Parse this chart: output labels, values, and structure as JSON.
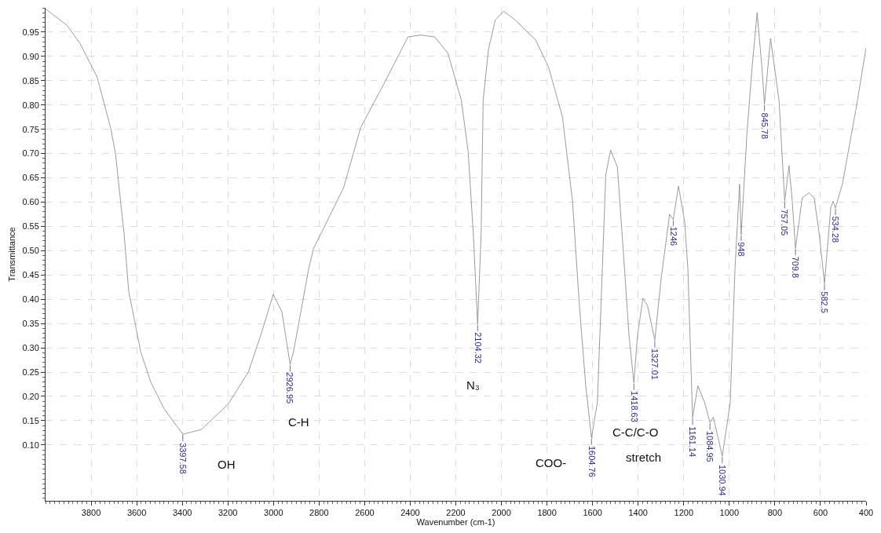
{
  "chart_data": {
    "type": "line",
    "xlabel": "Wavenumber (cm-1)",
    "ylabel": "Transmittance",
    "xlim": [
      4000,
      400
    ],
    "xticks": [
      3800,
      3600,
      3400,
      3200,
      3000,
      2800,
      2600,
      2400,
      2200,
      2000,
      1800,
      1600,
      1400,
      1200,
      1000,
      800,
      600,
      400
    ],
    "ylim": [
      -0.015,
      1.0
    ],
    "yticks": [
      {
        "value": 0.1,
        "label": "0.10"
      },
      {
        "value": 0.15,
        "label": "0.15"
      },
      {
        "value": 0.2,
        "label": "0.20"
      },
      {
        "value": 0.25,
        "label": "0.25"
      },
      {
        "value": 0.3,
        "label": "0.30"
      },
      {
        "value": 0.35,
        "label": "0.35"
      },
      {
        "value": 0.4,
        "label": "0.40"
      },
      {
        "value": 0.45,
        "label": "0.45"
      },
      {
        "value": 0.5,
        "label": "0.50"
      },
      {
        "value": 0.55,
        "label": "0.55"
      },
      {
        "value": 0.6,
        "label": "0.60"
      },
      {
        "value": 0.65,
        "label": "0.65"
      },
      {
        "value": 0.7,
        "label": "0.70"
      },
      {
        "value": 0.75,
        "label": "0.75"
      },
      {
        "value": 0.8,
        "label": "0.80"
      },
      {
        "value": 0.85,
        "label": "0.85"
      },
      {
        "value": 0.9,
        "label": "0.90"
      },
      {
        "value": 0.95,
        "label": "0.95"
      }
    ],
    "grid": true,
    "line_style": "solid",
    "series": [
      {
        "color": "#808080",
        "x": [
          4000,
          3906,
          3849,
          3774,
          3715,
          3693,
          3671,
          3655,
          3635,
          3611,
          3582,
          3538,
          3479,
          3397.58,
          3316,
          3199,
          3110,
          3051,
          3001,
          2963,
          2926.95,
          2912,
          2845,
          2824,
          2780,
          2692,
          2617,
          2516,
          2410,
          2353,
          2292,
          2234,
          2176,
          2146,
          2123,
          2104.32,
          2089,
          2080,
          2057,
          2027,
          1990,
          1939,
          1850,
          1793,
          1732,
          1688,
          1659,
          1630,
          1604.76,
          1579,
          1557,
          1542,
          1521,
          1491,
          1460,
          1440,
          1418.63,
          1403,
          1379,
          1359,
          1327.01,
          1299,
          1262,
          1246,
          1223,
          1196,
          1182,
          1161.14,
          1138,
          1108,
          1084.95,
          1070,
          1030.94,
          996,
          975,
          955,
          948,
          923,
          900,
          878,
          857,
          845.78,
          819,
          782,
          757.05,
          738,
          724,
          709.8,
          680,
          650,
          628,
          605,
          582.5,
          555,
          545,
          534.28,
          504,
          443,
          400
        ],
        "values": [
          0.998,
          0.964,
          0.927,
          0.858,
          0.754,
          0.7,
          0.602,
          0.533,
          0.416,
          0.36,
          0.291,
          0.229,
          0.174,
          0.122,
          0.132,
          0.184,
          0.25,
          0.333,
          0.41,
          0.374,
          0.266,
          0.292,
          0.464,
          0.505,
          0.546,
          0.63,
          0.754,
          0.843,
          0.94,
          0.944,
          0.94,
          0.906,
          0.81,
          0.705,
          0.533,
          0.349,
          0.533,
          0.81,
          0.913,
          0.975,
          0.993,
          0.975,
          0.934,
          0.878,
          0.775,
          0.602,
          0.395,
          0.222,
          0.115,
          0.187,
          0.464,
          0.657,
          0.707,
          0.672,
          0.464,
          0.325,
          0.228,
          0.325,
          0.402,
          0.387,
          0.316,
          0.443,
          0.575,
          0.564,
          0.633,
          0.56,
          0.464,
          0.157,
          0.222,
          0.187,
          0.146,
          0.157,
          0.077,
          0.187,
          0.464,
          0.637,
          0.533,
          0.74,
          0.878,
          0.99,
          0.878,
          0.802,
          0.937,
          0.81,
          0.602,
          0.675,
          0.602,
          0.505,
          0.609,
          0.619,
          0.609,
          0.533,
          0.433,
          0.588,
          0.602,
          0.588,
          0.637,
          0.795,
          0.918
        ]
      }
    ],
    "annotations": [
      {
        "text": "3397.58",
        "x": 3397.58,
        "y": 0.122
      },
      {
        "text": "2926.95",
        "x": 2926.95,
        "y": 0.266
      },
      {
        "text": "2104.32",
        "x": 2104.32,
        "y": 0.349
      },
      {
        "text": "1604.76",
        "x": 1604.76,
        "y": 0.115
      },
      {
        "text": "1418.63",
        "x": 1418.63,
        "y": 0.228
      },
      {
        "text": "1327.01",
        "x": 1327.01,
        "y": 0.316
      },
      {
        "text": "1246",
        "x": 1246,
        "y": 0.564
      },
      {
        "text": "1161.14",
        "x": 1161.14,
        "y": 0.157
      },
      {
        "text": "1084.95",
        "x": 1084.95,
        "y": 0.146
      },
      {
        "text": "1030.94",
        "x": 1030.94,
        "y": 0.077
      },
      {
        "text": "948",
        "x": 948,
        "y": 0.533
      },
      {
        "text": "845.78",
        "x": 845.78,
        "y": 0.802
      },
      {
        "text": "757.05",
        "x": 757.05,
        "y": 0.602
      },
      {
        "text": "709.8",
        "x": 709.8,
        "y": 0.505
      },
      {
        "text": "582.5",
        "x": 582.5,
        "y": 0.433
      },
      {
        "text": "534.28",
        "x": 534.28,
        "y": 0.588
      },
      "OH",
      "C-H",
      "N₃",
      "COO-",
      "C-C/C-O",
      "stretch"
    ]
  }
}
